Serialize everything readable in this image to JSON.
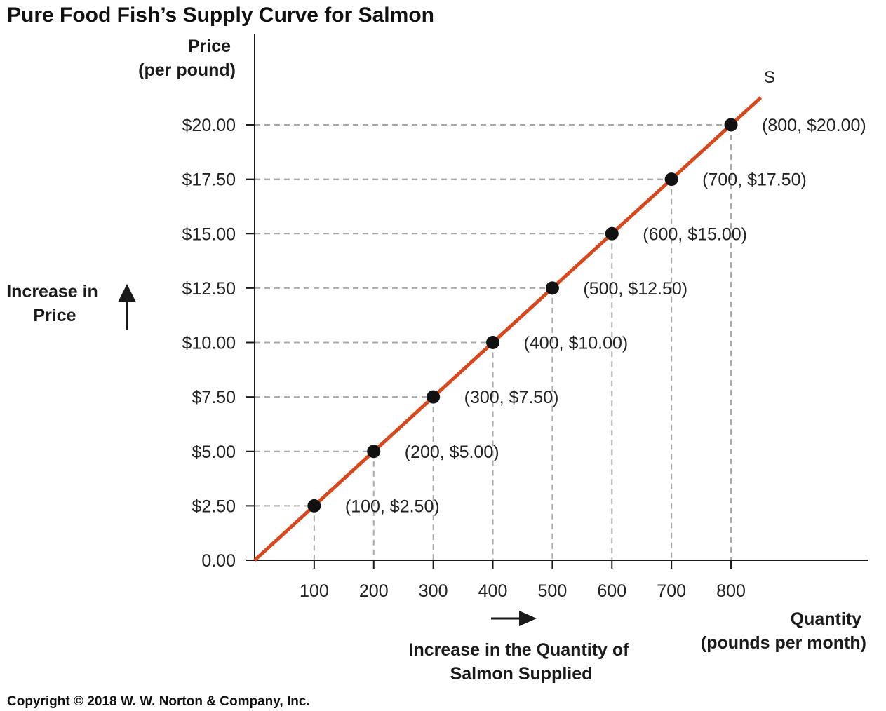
{
  "chart_data": {
    "type": "line",
    "title": "Pure Food Fish’s Supply Curve for Salmon",
    "ylabel_lines": [
      "Price",
      "(per pound)"
    ],
    "xlabel_lines": [
      "Quantity",
      "(pounds per month)"
    ],
    "y_ticks": [
      {
        "value": 0,
        "label": "0.00"
      },
      {
        "value": 2.5,
        "label": "$2.50"
      },
      {
        "value": 5,
        "label": "$5.00"
      },
      {
        "value": 7.5,
        "label": "$7.50"
      },
      {
        "value": 10,
        "label": "$10.00"
      },
      {
        "value": 12.5,
        "label": "$12.50"
      },
      {
        "value": 15,
        "label": "$15.00"
      },
      {
        "value": 17.5,
        "label": "$17.50"
      },
      {
        "value": 20,
        "label": "$20.00"
      }
    ],
    "x_ticks": [
      {
        "value": 100,
        "label": "100"
      },
      {
        "value": 200,
        "label": "200"
      },
      {
        "value": 300,
        "label": "300"
      },
      {
        "value": 400,
        "label": "400"
      },
      {
        "value": 500,
        "label": "500"
      },
      {
        "value": 600,
        "label": "600"
      },
      {
        "value": 700,
        "label": "700"
      },
      {
        "value": 800,
        "label": "800"
      }
    ],
    "xlim": [
      0,
      1025
    ],
    "ylim": [
      0,
      21.5
    ],
    "series": [
      {
        "name": "S",
        "color": "#d9481c",
        "line": {
          "x": [
            0,
            850
          ],
          "y": [
            0,
            21.25
          ]
        },
        "points": [
          {
            "x": 100,
            "y": 2.5,
            "label": "(100, $2.50)"
          },
          {
            "x": 200,
            "y": 5.0,
            "label": "(200, $5.00)"
          },
          {
            "x": 300,
            "y": 7.5,
            "label": "(300, $7.50)"
          },
          {
            "x": 400,
            "y": 10.0,
            "label": "(400, $10.00)"
          },
          {
            "x": 500,
            "y": 12.5,
            "label": "(500, $12.50)"
          },
          {
            "x": 600,
            "y": 15.0,
            "label": "(600, $15.00)"
          },
          {
            "x": 700,
            "y": 17.5,
            "label": "(700, $17.50)"
          },
          {
            "x": 800,
            "y": 20.0,
            "label": "(800, $20.00)"
          }
        ]
      }
    ],
    "guide_lines": "dashed",
    "annotations": {
      "price_increase_lines": [
        "Increase in",
        "Price"
      ],
      "quantity_increase_lines": [
        "Increase in the Quantity of",
        "Salmon Supplied"
      ]
    },
    "colors": {
      "curve": "#d9481c",
      "points": "#111111",
      "guides": "#a9a9a9",
      "axes": "#1a1a1a"
    }
  },
  "copyright": "Copyright © 2018 W. W. Norton & Company, Inc."
}
